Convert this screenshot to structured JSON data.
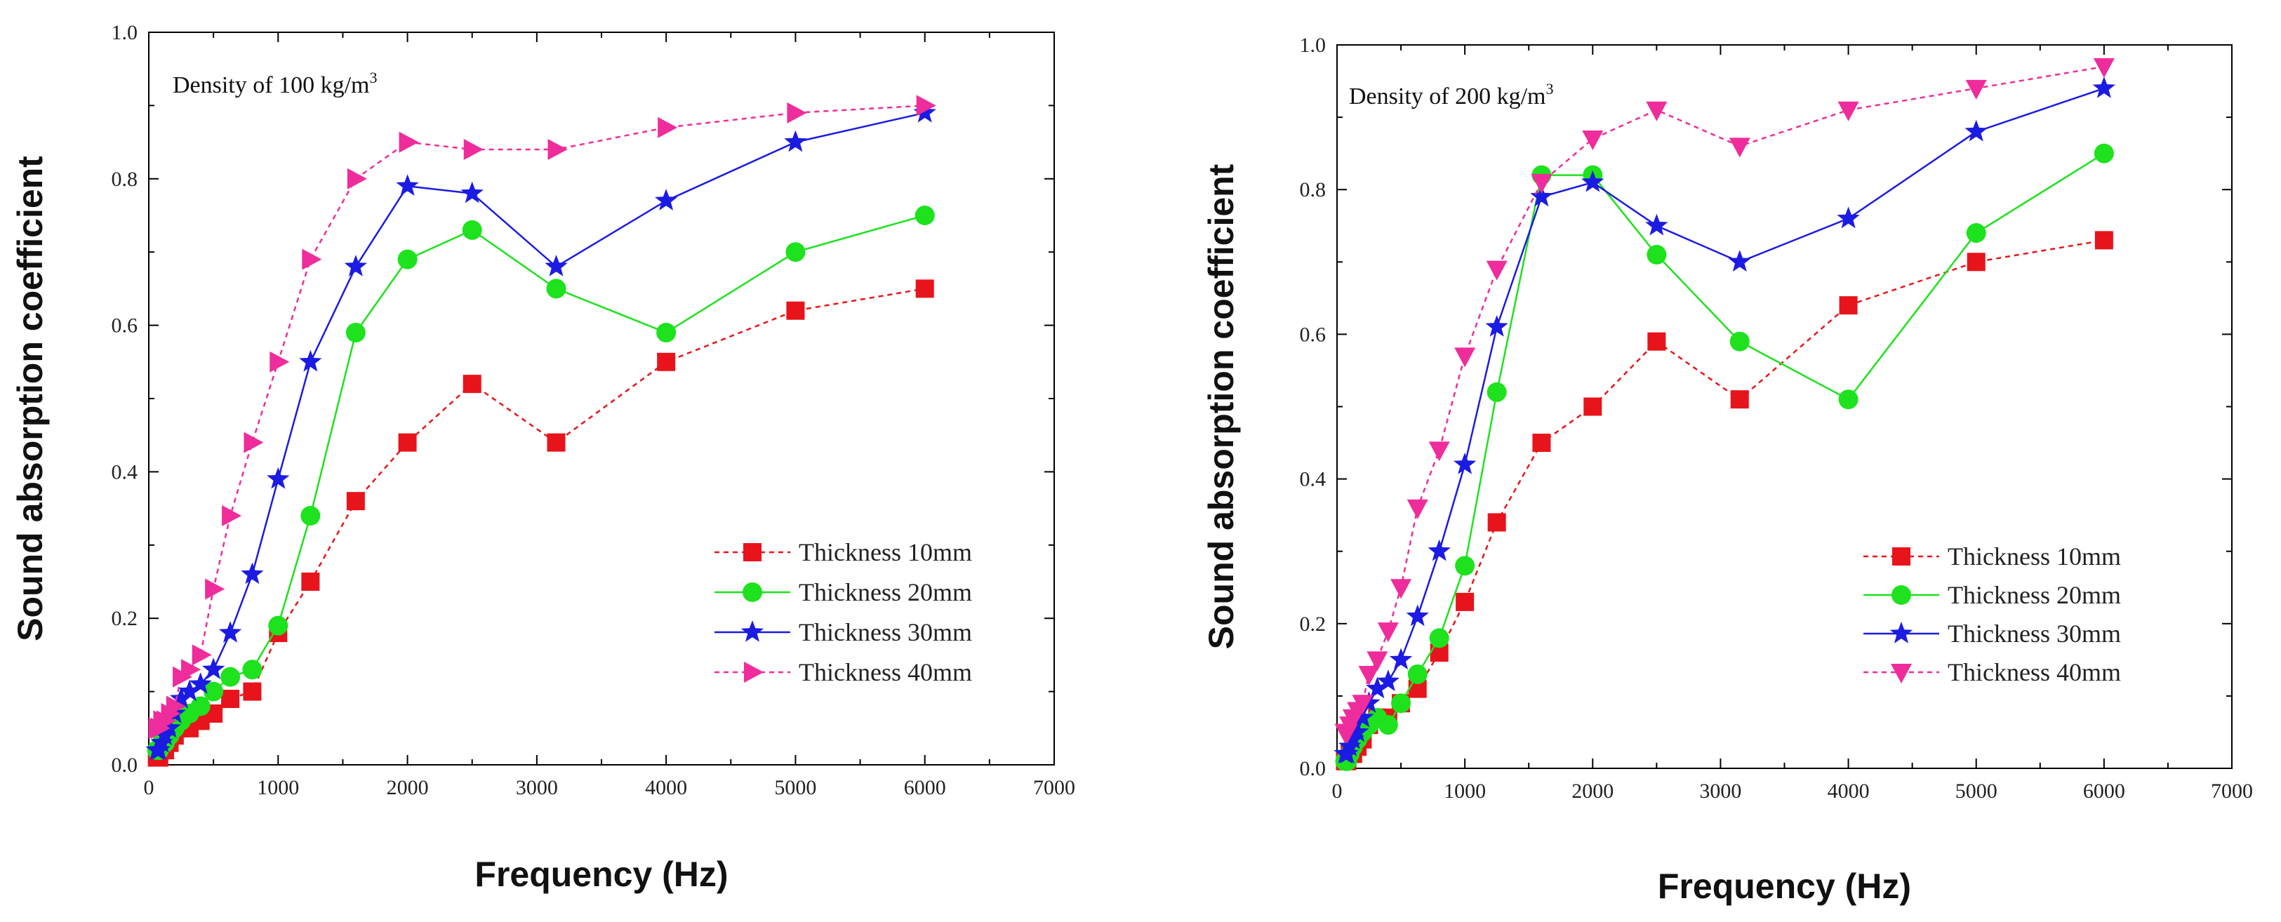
{
  "chart_data": [
    {
      "type": "line",
      "annotation": "Density of 100 kg/m",
      "annotation_sup": "3",
      "xlabel": "Frequency (Hz)",
      "ylabel": "Sound absorption coefficient",
      "xlim": [
        0,
        7000
      ],
      "ylim": [
        0,
        1.0
      ],
      "xticks": [
        0,
        1000,
        2000,
        3000,
        4000,
        5000,
        6000,
        7000
      ],
      "yticks": [
        0.0,
        0.2,
        0.4,
        0.6,
        0.8,
        1.0
      ],
      "ytick_labels": [
        "0.0",
        "0.2",
        "0.4",
        "0.6",
        "0.8",
        "1.0"
      ],
      "legend_position": "lower-right",
      "series": [
        {
          "name": "Thickness 10mm",
          "color": "#e8141b",
          "marker": "square",
          "dash": true,
          "x": [
            63,
            80,
            100,
            125,
            160,
            200,
            250,
            315,
            400,
            500,
            630,
            800,
            1000,
            1250,
            1600,
            2000,
            2500,
            3150,
            4000,
            5000,
            6000
          ],
          "y": [
            0.01,
            0.01,
            0.02,
            0.02,
            0.03,
            0.04,
            0.05,
            0.05,
            0.06,
            0.07,
            0.09,
            0.1,
            0.18,
            0.25,
            0.36,
            0.44,
            0.52,
            0.44,
            0.55,
            0.62,
            0.65
          ]
        },
        {
          "name": "Thickness 20mm",
          "color": "#1de21d",
          "marker": "circle",
          "dash": false,
          "x": [
            63,
            80,
            100,
            125,
            160,
            200,
            250,
            315,
            400,
            500,
            630,
            800,
            1000,
            1250,
            1600,
            2000,
            2500,
            3150,
            4000,
            5000,
            6000
          ],
          "y": [
            0.02,
            0.02,
            0.03,
            0.03,
            0.04,
            0.05,
            0.06,
            0.07,
            0.08,
            0.1,
            0.12,
            0.13,
            0.19,
            0.34,
            0.59,
            0.69,
            0.73,
            0.65,
            0.59,
            0.7,
            0.75
          ]
        },
        {
          "name": "Thickness 30mm",
          "color": "#1b1be3",
          "marker": "star",
          "dash": false,
          "x": [
            63,
            80,
            100,
            125,
            160,
            200,
            250,
            315,
            400,
            500,
            630,
            800,
            1000,
            1250,
            1600,
            2000,
            2500,
            3150,
            4000,
            5000,
            6000
          ],
          "y": [
            0.02,
            0.02,
            0.03,
            0.04,
            0.05,
            0.07,
            0.09,
            0.1,
            0.11,
            0.13,
            0.18,
            0.26,
            0.39,
            0.55,
            0.68,
            0.79,
            0.78,
            0.68,
            0.77,
            0.85,
            0.89
          ]
        },
        {
          "name": "Thickness 40mm",
          "color": "#ef2c9b",
          "marker": "triangle-right",
          "dash": true,
          "x": [
            63,
            80,
            100,
            125,
            160,
            200,
            250,
            315,
            400,
            500,
            630,
            800,
            1000,
            1250,
            1600,
            2000,
            2500,
            3150,
            4000,
            5000,
            6000
          ],
          "y": [
            0.05,
            0.05,
            0.06,
            0.06,
            0.07,
            0.08,
            0.12,
            0.13,
            0.15,
            0.24,
            0.34,
            0.44,
            0.55,
            0.69,
            0.8,
            0.85,
            0.84,
            0.84,
            0.87,
            0.89,
            0.9
          ]
        }
      ]
    },
    {
      "type": "line",
      "annotation": "Density of 200 kg/m",
      "annotation_sup": "3",
      "xlabel": "Frequency (Hz)",
      "ylabel": "Sound absorption coefficient",
      "xlim": [
        0,
        7000
      ],
      "ylim": [
        0,
        1.0
      ],
      "xticks": [
        0,
        1000,
        2000,
        3000,
        4000,
        5000,
        6000,
        7000
      ],
      "yticks": [
        0.0,
        0.2,
        0.4,
        0.6,
        0.8,
        1.0
      ],
      "ytick_labels": [
        "0.0",
        "0.2",
        "0.4",
        "0.6",
        "0.8",
        "1.0"
      ],
      "legend_position": "lower-right",
      "series": [
        {
          "name": "Thickness 10mm",
          "color": "#e8141b",
          "marker": "square",
          "dash": true,
          "x": [
            63,
            80,
            100,
            125,
            160,
            200,
            250,
            315,
            400,
            500,
            630,
            800,
            1000,
            1250,
            1600,
            2000,
            2500,
            3150,
            4000,
            5000,
            6000
          ],
          "y": [
            0.01,
            0.01,
            0.02,
            0.02,
            0.03,
            0.04,
            0.06,
            0.07,
            0.07,
            0.09,
            0.11,
            0.16,
            0.23,
            0.34,
            0.45,
            0.5,
            0.59,
            0.51,
            0.64,
            0.7,
            0.73
          ]
        },
        {
          "name": "Thickness 20mm",
          "color": "#1de21d",
          "marker": "circle",
          "dash": false,
          "x": [
            63,
            80,
            100,
            125,
            160,
            200,
            250,
            315,
            400,
            500,
            630,
            800,
            1000,
            1250,
            1600,
            2000,
            2500,
            3150,
            4000,
            5000,
            6000
          ],
          "y": [
            0.01,
            0.01,
            0.02,
            0.03,
            0.04,
            0.05,
            0.06,
            0.07,
            0.06,
            0.09,
            0.13,
            0.18,
            0.28,
            0.52,
            0.82,
            0.82,
            0.71,
            0.59,
            0.51,
            0.74,
            0.85
          ]
        },
        {
          "name": "Thickness 30mm",
          "color": "#1b1be3",
          "marker": "star",
          "dash": false,
          "x": [
            63,
            80,
            100,
            125,
            160,
            200,
            250,
            315,
            400,
            500,
            630,
            800,
            1000,
            1250,
            1600,
            2000,
            2500,
            3150,
            4000,
            5000,
            6000
          ],
          "y": [
            0.02,
            0.02,
            0.03,
            0.04,
            0.05,
            0.07,
            0.09,
            0.11,
            0.12,
            0.15,
            0.21,
            0.3,
            0.42,
            0.61,
            0.79,
            0.81,
            0.75,
            0.7,
            0.76,
            0.88,
            0.94
          ]
        },
        {
          "name": "Thickness 40mm",
          "color": "#ef2c9b",
          "marker": "triangle-down",
          "dash": true,
          "x": [
            63,
            80,
            100,
            125,
            160,
            200,
            250,
            315,
            400,
            500,
            630,
            800,
            1000,
            1250,
            1600,
            2000,
            2500,
            3150,
            4000,
            5000,
            6000
          ],
          "y": [
            0.05,
            0.05,
            0.06,
            0.07,
            0.08,
            0.09,
            0.13,
            0.15,
            0.19,
            0.25,
            0.36,
            0.44,
            0.57,
            0.69,
            0.81,
            0.87,
            0.91,
            0.86,
            0.91,
            0.94,
            0.97
          ]
        }
      ]
    }
  ]
}
